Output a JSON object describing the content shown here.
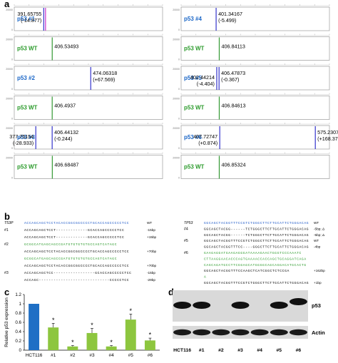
{
  "panels": {
    "a": "a",
    "b": "b",
    "c": "c",
    "d": "d"
  },
  "panel_a": {
    "ytick_top": "20000",
    "ytick_bottom": "0",
    "traces": [
      {
        "label": "p53 #1",
        "kind": "clone",
        "peaks": [
          {
            "value": "391.65755",
            "delta": "(-14.877)",
            "color": "#3333cc"
          },
          {
            "value": "",
            "delta": "",
            "color": "#cc33cc"
          }
        ]
      },
      {
        "label": "p53 WT",
        "kind": "wt",
        "peaks": [
          {
            "value": "406.53493",
            "delta": "",
            "color": "#339933"
          }
        ]
      },
      {
        "label": "p53 #2",
        "kind": "clone",
        "peaks": [
          {
            "value": "474.06318",
            "delta": "(+67.569)",
            "color": "#3333cc"
          }
        ]
      },
      {
        "label": "p53 WT",
        "kind": "wt",
        "peaks": [
          {
            "value": "406.4937",
            "delta": "",
            "color": "#339933"
          }
        ]
      },
      {
        "label": "p53 #3",
        "kind": "clone",
        "peaks": [
          {
            "value": "377.75154",
            "delta": "(-28.933)",
            "color": "#3333cc"
          },
          {
            "value": "406.44132",
            "delta": "(-0.244)",
            "color": "#3333cc"
          }
        ]
      },
      {
        "label": "p53 WT",
        "kind": "wt",
        "peaks": [
          {
            "value": "406.68487",
            "delta": "",
            "color": "#339933"
          }
        ]
      },
      {
        "label": "p53 #4",
        "kind": "clone",
        "peaks": [
          {
            "value": "401.34167",
            "delta": "(-5.499)",
            "color": "#3333cc"
          }
        ]
      },
      {
        "label": "p53 WT",
        "kind": "wt",
        "peaks": [
          {
            "value": "406.84113",
            "delta": "",
            "color": "#339933"
          }
        ]
      },
      {
        "label": "p53 #5",
        "kind": "clone",
        "peaks": [
          {
            "value": "402.44214",
            "delta": "(-4.404)",
            "color": "#3333cc"
          },
          {
            "value": "406.47873",
            "delta": "(-0.367)",
            "color": "#3333cc"
          }
        ]
      },
      {
        "label": "p53 WT",
        "kind": "wt",
        "peaks": [
          {
            "value": "406.84613",
            "delta": "",
            "color": "#339933"
          }
        ]
      },
      {
        "label": "p53 #6",
        "kind": "clone",
        "peaks": [
          {
            "value": "407.72747",
            "delta": "(+0.874)",
            "color": "#3333cc"
          },
          {
            "value": "575.23077",
            "delta": "(+168.378)",
            "color": "#3333cc"
          }
        ]
      },
      {
        "label": "p53 WT",
        "kind": "wt",
        "peaks": [
          {
            "value": "406.85324",
            "delta": "",
            "color": "#339933"
          }
        ]
      }
    ]
  },
  "panel_b": {
    "left": {
      "header": "T53P",
      "rows": [
        {
          "label": "",
          "seq": "ACCAGCAGCTCCTACACCGGCGGCCCCTGCACCAGCCCCCTCC",
          "note": "WT",
          "color": "#1a56c7"
        },
        {
          "label": "#1",
          "seq": "ACCAGCAGCTCCT-------------GCACCAGCCCCCTCC",
          "note": "-15bp",
          "color": "#000000"
        },
        {
          "label": "",
          "seq": "ACCAGCAGCTCCT-------------GCACCAGCCCCCTCC",
          "note": "+15bp",
          "color": "#000000"
        },
        {
          "label": "#2",
          "seq": "GCGGCATGAGCAGCCGATGTGTGTGTGCCAGTCATAGC",
          "note": "",
          "color": "#2a9a2a"
        },
        {
          "label": "",
          "seq": "ACCAGCAGCTCCTACACCGGCGGCCCCTGCACCAGCCCCCTCC",
          "note": "+70bp",
          "color": "#000000"
        },
        {
          "label": "",
          "seq": "GCGGCATGAGCAGCCGATGTGTGTGTGCCAGTCATAGC",
          "note": "",
          "color": "#2a9a2a"
        },
        {
          "label": "",
          "seq": "ACCAGCAGCTCCTACACCGGCGGCCCCTGCACCAGCCCCCTCC",
          "note": "+70bp",
          "color": "#000000"
        },
        {
          "label": "#3",
          "seq": "ACCAGCAGCTCC-----------------GCACCAGCCCCCTCC",
          "note": "-15bp",
          "color": "#000000"
        },
        {
          "label": "",
          "seq": "ACCAGC-----------------------------CCCCCTCC",
          "note": "-29bp",
          "color": "#000000"
        }
      ]
    },
    "right": {
      "header": "TP53",
      "rows": [
        {
          "label": "",
          "seq": "GGCAGCTACGGTTTCCGTCTGGGCTTCTTGCATTCTGGGACAG",
          "note": "WT",
          "color": "#1a56c7"
        },
        {
          "label": "#4",
          "seq": "GGCAGCTACGG------TCTGGGCTTCTTGCATTCTGGGACAG",
          "note": "-5bp; Δ",
          "color": "#000000"
        },
        {
          "label": "",
          "seq": "GGCAGCTACGG------TCTGGGCTTCTTGCATTCTGGGACAG",
          "note": "-5bp; Δ",
          "color": "#000000"
        },
        {
          "label": "#5",
          "seq": "GGCAGCTACGGTTTCCGTCTGGGCTTCTTGCATTCTGGGACAG",
          "note": "WT",
          "color": "#000000"
        },
        {
          "label": "",
          "seq": "GGCAGCTACGGTTTCC----GGGCTTCTTGCATTCTGGGACAG",
          "note": "-4bp",
          "color": "#000000"
        },
        {
          "label": "#6",
          "seq": "GAAGAGGATGAAGAGGGATAAAAGAACTGGGTCCCAAATC",
          "note": "",
          "color": "#2a9a2a"
        },
        {
          "label": "",
          "seq": "CTTAAGGAACACCCAGTGAAAACCACCAGCTGCAGGATCAGA",
          "note": "",
          "color": "#2a9a2a"
        },
        {
          "label": "",
          "seq": "CAGCAGATGCCTTCGGAGCATGGGGCAGCAGGACATGCACTG",
          "note": "",
          "color": "#2a9a2a"
        },
        {
          "label": "",
          "seq": "GGCAGCTACGGTTTCCAAGCTCATCGGCTCTCCGA",
          "note": "+162bp",
          "color": "#000000"
        },
        {
          "label": "",
          "seq": "A",
          "note": "",
          "color": "#2a9a2a"
        },
        {
          "label": "",
          "seq": "GGCAGCTACGGTTTCCGTCTGGGCTTCTTGCATTCTGGGACAG",
          "note": "+1bp",
          "color": "#000000"
        }
      ]
    }
  },
  "chart_data": {
    "type": "bar",
    "ylabel": "Relative p53 expression",
    "categories": [
      "HCT116",
      "#1",
      "#2",
      "#3",
      "#4",
      "#5",
      "#6"
    ],
    "values": [
      1.0,
      0.49,
      0.08,
      0.37,
      0.08,
      0.66,
      0.21
    ],
    "errors": [
      0.0,
      0.09,
      0.02,
      0.1,
      0.02,
      0.12,
      0.05
    ],
    "significance": [
      "",
      "*",
      "*",
      "*",
      "*",
      "*",
      "*"
    ],
    "colors": [
      "#1f6fc5",
      "#8dc63f",
      "#8dc63f",
      "#8dc63f",
      "#8dc63f",
      "#8dc63f",
      "#8dc63f"
    ],
    "ylim": [
      0,
      1.2
    ],
    "yticks": [
      "0",
      "0.2",
      "0.4",
      "0.6",
      "0.8",
      "1",
      "1.2"
    ]
  },
  "panel_d": {
    "bands": [
      {
        "label": "p53"
      },
      {
        "label": "Actin"
      }
    ],
    "lanes": [
      "HCT116",
      "#1",
      "#2",
      "#3",
      "#4",
      "#5",
      "#6"
    ],
    "p53_presence": [
      1,
      1,
      0,
      1,
      0,
      1,
      1
    ]
  }
}
